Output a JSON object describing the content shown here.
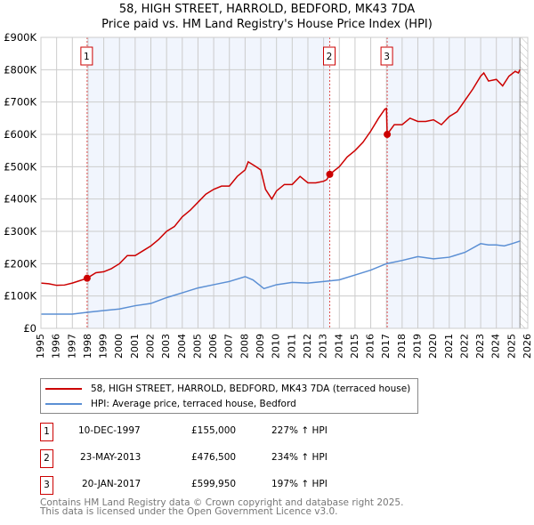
{
  "chart_data": {
    "type": "line",
    "title": "58, HIGH STREET, HARROLD, BEDFORD, MK43 7DA",
    "subtitle": "Price paid vs. HM Land Registry's House Price Index (HPI)",
    "xlim": [
      1995,
      2026
    ],
    "ylim": [
      0,
      900000
    ],
    "x_ticks": [
      "1995",
      "1996",
      "1997",
      "1998",
      "1999",
      "2000",
      "2001",
      "2002",
      "2003",
      "2004",
      "2005",
      "2006",
      "2007",
      "2008",
      "2009",
      "2010",
      "2011",
      "2012",
      "2013",
      "2014",
      "2015",
      "2016",
      "2017",
      "2018",
      "2019",
      "2020",
      "2021",
      "2022",
      "2023",
      "2024",
      "2025",
      "2026"
    ],
    "y_ticks": [
      {
        "v": 0,
        "label": "£0"
      },
      {
        "v": 100000,
        "label": "£100K"
      },
      {
        "v": 200000,
        "label": "£200K"
      },
      {
        "v": 300000,
        "label": "£300K"
      },
      {
        "v": 400000,
        "label": "£400K"
      },
      {
        "v": 500000,
        "label": "£500K"
      },
      {
        "v": 600000,
        "label": "£600K"
      },
      {
        "v": 700000,
        "label": "£700K"
      },
      {
        "v": 800000,
        "label": "£800K"
      },
      {
        "v": 900000,
        "label": "£900K"
      }
    ],
    "grid": true,
    "series": [
      {
        "name": "58, HIGH STREET, HARROLD, BEDFORD, MK43 7DA (terraced house)",
        "color": "#cc0000",
        "x": [
          1995,
          1995.5,
          1996,
          1996.5,
          1997,
          1997.5,
          1997.94,
          1998.5,
          1999,
          1999.5,
          2000,
          2000.5,
          2001,
          2001.5,
          2002,
          2002.5,
          2003,
          2003.5,
          2004,
          2004.5,
          2005,
          2005.5,
          2006,
          2006.5,
          2007,
          2007.5,
          2008,
          2008.2,
          2008.7,
          2009,
          2009.3,
          2009.7,
          2010,
          2010.5,
          2011,
          2011.5,
          2012,
          2012.5,
          2013,
          2013.2,
          2013.39,
          2014,
          2014.5,
          2015,
          2015.5,
          2016,
          2016.5,
          2016.9,
          2017,
          2017.05,
          2017.5,
          2018,
          2018.5,
          2019,
          2019.5,
          2020,
          2020.5,
          2021,
          2021.5,
          2022,
          2022.5,
          2023,
          2023.2,
          2023.5,
          2024,
          2024.4,
          2024.8,
          2025.2,
          2025.4,
          2025.5
        ],
        "y": [
          140000,
          138000,
          133000,
          134000,
          140000,
          148000,
          155000,
          172000,
          175000,
          185000,
          200000,
          225000,
          225000,
          240000,
          255000,
          275000,
          300000,
          315000,
          345000,
          365000,
          390000,
          415000,
          430000,
          440000,
          440000,
          470000,
          490000,
          515000,
          500000,
          490000,
          430000,
          400000,
          425000,
          445000,
          445000,
          470000,
          450000,
          450000,
          455000,
          460000,
          476500,
          500000,
          530000,
          550000,
          575000,
          610000,
          650000,
          678000,
          680000,
          600000,
          630000,
          630000,
          650000,
          640000,
          640000,
          645000,
          630000,
          655000,
          670000,
          705000,
          740000,
          780000,
          790000,
          765000,
          770000,
          750000,
          780000,
          795000,
          790000,
          800000
        ]
      },
      {
        "name": "HPI: Average price, terraced house, Bedford",
        "color": "#5b8fd4",
        "x": [
          1995,
          1997,
          1998,
          1999,
          2000,
          2001,
          2002,
          2003,
          2004,
          2005,
          2006,
          2007,
          2008,
          2008.5,
          2009.2,
          2010,
          2011,
          2012,
          2013,
          2014,
          2015,
          2016,
          2017,
          2018,
          2019,
          2020,
          2021,
          2022,
          2023,
          2023.5,
          2024,
          2024.5,
          2025,
          2025.5
        ],
        "y": [
          44000,
          44000,
          50000,
          55000,
          60000,
          70000,
          77000,
          95000,
          110000,
          125000,
          135000,
          145000,
          160000,
          150000,
          123000,
          135000,
          142000,
          140000,
          145000,
          150000,
          165000,
          180000,
          200000,
          210000,
          222000,
          215000,
          220000,
          235000,
          262000,
          258000,
          258000,
          255000,
          262000,
          270000
        ]
      }
    ],
    "sales": [
      {
        "num": "1",
        "date": "10-DEC-1997",
        "price": "£155,000",
        "hpi": "227% ↑ HPI",
        "x": 1997.94,
        "y": 155000
      },
      {
        "num": "2",
        "date": "23-MAY-2013",
        "price": "£476,500",
        "hpi": "234% ↑ HPI",
        "x": 2013.39,
        "y": 476500
      },
      {
        "num": "3",
        "date": "20-JAN-2017",
        "price": "£599,950",
        "hpi": "197% ↑ HPI",
        "x": 2017.05,
        "y": 599950
      }
    ],
    "hatch_from": 2025.5
  },
  "footer": {
    "line1": "Contains HM Land Registry data © Crown copyright and database right 2025.",
    "line2": "This data is licensed under the Open Government Licence v3.0."
  }
}
